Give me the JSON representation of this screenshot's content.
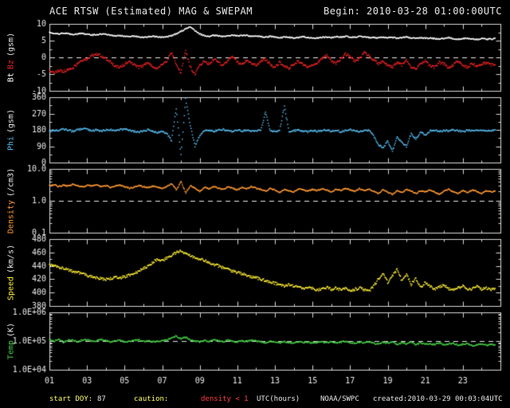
{
  "header": {
    "title": "ACE RTSW (Estimated) MAG & SWEPAM",
    "begin": "Begin: 2010-03-28 01:00:00UTC"
  },
  "footer": {
    "start_doy_label": "start DOY:",
    "start_doy_value": "87",
    "caution_label": "caution:",
    "caution_value": "density < 1",
    "xlabel": "UTC(hours)",
    "agency": "NOAA/SWPC",
    "created": "created:2010-03-29 00:03:04UTC"
  },
  "chart_data": {
    "type": "line",
    "title": "ACE RTSW (Estimated) MAG & SWEPAM",
    "xlabel": "UTC(hours)",
    "x_range": [
      1,
      25
    ],
    "x_ticks": [
      1,
      3,
      5,
      7,
      9,
      11,
      13,
      15,
      17,
      19,
      21,
      23
    ],
    "x_tick_labels": [
      "01",
      "03",
      "05",
      "07",
      "09",
      "11",
      "13",
      "15",
      "17",
      "19",
      "21",
      "23"
    ],
    "frame_color": "#d9d9d9",
    "tick_label_color": "#e8e8e8",
    "x": [
      1.0,
      1.25,
      1.5,
      1.75,
      2.0,
      2.25,
      2.5,
      2.75,
      3.0,
      3.25,
      3.5,
      3.75,
      4.0,
      4.25,
      4.5,
      4.75,
      5.0,
      5.25,
      5.5,
      5.75,
      6.0,
      6.25,
      6.5,
      6.75,
      7.0,
      7.25,
      7.5,
      7.75,
      8.0,
      8.25,
      8.5,
      8.75,
      9.0,
      9.25,
      9.5,
      9.75,
      10.0,
      10.25,
      10.5,
      10.75,
      11.0,
      11.25,
      11.5,
      11.75,
      12.0,
      12.25,
      12.5,
      12.75,
      13.0,
      13.25,
      13.5,
      13.75,
      14.0,
      14.25,
      14.5,
      14.75,
      15.0,
      15.25,
      15.5,
      15.75,
      16.0,
      16.25,
      16.5,
      16.75,
      17.0,
      17.25,
      17.5,
      17.75,
      18.0,
      18.25,
      18.5,
      18.75,
      19.0,
      19.25,
      19.5,
      19.75,
      20.0,
      20.25,
      20.5,
      20.75,
      21.0,
      21.25,
      21.5,
      21.75,
      22.0,
      22.25,
      22.5,
      22.75,
      23.0,
      23.25,
      23.5,
      23.75,
      24.0,
      24.25,
      24.5,
      24.75
    ],
    "panels": [
      {
        "id": "mag",
        "unit": "(gsm)",
        "scale": "linear",
        "ylim": [
          -10,
          10
        ],
        "yticks": [
          -10,
          -5,
          0,
          5,
          10
        ],
        "ytick_labels": [
          "-10",
          "-5",
          "0",
          "5",
          "10"
        ],
        "ref_lines": [
          0
        ],
        "series": [
          {
            "name": "Bt",
            "color": "#ffffff",
            "values": [
              7.5,
              7.2,
              7.0,
              7.3,
              7.1,
              6.8,
              7.0,
              7.2,
              6.9,
              6.7,
              6.8,
              7.0,
              6.9,
              6.6,
              6.4,
              6.5,
              6.3,
              6.2,
              6.4,
              6.1,
              6.0,
              6.2,
              6.3,
              6.1,
              6.0,
              6.2,
              6.5,
              7.0,
              7.8,
              8.5,
              9.2,
              8.0,
              7.0,
              6.5,
              6.3,
              6.6,
              6.4,
              6.2,
              6.5,
              6.7,
              6.4,
              6.6,
              6.5,
              6.3,
              6.4,
              6.2,
              6.0,
              6.3,
              6.1,
              5.9,
              6.1,
              6.0,
              5.8,
              6.0,
              6.2,
              5.9,
              5.7,
              5.8,
              6.0,
              6.1,
              5.9,
              6.2,
              6.0,
              6.3,
              6.1,
              6.0,
              6.2,
              6.1,
              5.9,
              6.0,
              5.8,
              6.1,
              5.9,
              6.0,
              5.7,
              5.9,
              6.1,
              5.8,
              5.6,
              5.9,
              5.7,
              5.8,
              5.6,
              5.5,
              5.7,
              5.9,
              5.6,
              5.4,
              5.6,
              5.8,
              5.5,
              5.3,
              5.6,
              5.4,
              5.5,
              5.6
            ]
          },
          {
            "name": "Bz",
            "color": "#ee2222",
            "values": [
              -4.0,
              -4.5,
              -3.8,
              -4.2,
              -3.5,
              -3.0,
              -2.0,
              -1.0,
              -0.5,
              0.5,
              1.0,
              0.5,
              -0.5,
              -1.5,
              -2.5,
              -3.0,
              -2.0,
              -1.0,
              -2.2,
              -3.0,
              -2.5,
              -1.5,
              -2.8,
              -3.5,
              -2.0,
              -1.0,
              1.5,
              -2.0,
              -4.5,
              2.0,
              -3.0,
              -5.0,
              -2.5,
              -1.0,
              -2.0,
              -0.5,
              -1.5,
              -2.5,
              -1.0,
              0.5,
              -1.5,
              -2.0,
              -0.8,
              -1.8,
              -2.5,
              -1.2,
              -0.5,
              -2.0,
              -3.0,
              -1.5,
              -2.5,
              -3.2,
              -2.0,
              -1.0,
              -2.2,
              -3.0,
              -2.5,
              -1.5,
              -0.5,
              0.8,
              -1.0,
              -2.0,
              -0.5,
              1.0,
              0.2,
              -1.2,
              -0.5,
              1.5,
              0.5,
              -0.8,
              -2.0,
              -1.0,
              -2.5,
              -3.0,
              -1.5,
              -2.2,
              -0.8,
              -2.8,
              -3.5,
              -2.0,
              -1.0,
              -2.5,
              -3.0,
              -1.5,
              -2.0,
              -3.2,
              -2.2,
              -1.0,
              -2.5,
              -3.0,
              -1.8,
              -2.8,
              -2.0,
              -1.5,
              -2.2,
              -2.0
            ]
          }
        ]
      },
      {
        "id": "phi",
        "unit": "(gsm)",
        "scale": "linear",
        "ylim": [
          0,
          360
        ],
        "yticks": [
          0,
          90,
          180,
          270,
          360
        ],
        "ytick_labels": [
          "0",
          "90",
          "180",
          "270",
          "360"
        ],
        "ref_lines": [],
        "series": [
          {
            "name": "Phi",
            "color": "#55bbee",
            "values": [
              170,
              180,
              175,
              185,
              178,
              172,
              180,
              188,
              182,
              176,
              180,
              174,
              178,
              182,
              176,
              180,
              185,
              178,
              172,
              168,
              175,
              180,
              172,
              165,
              170,
              160,
              120,
              300,
              40,
              350,
              200,
              90,
              150,
              175,
              180,
              172,
              178,
              182,
              176,
              170,
              180,
              174,
              178,
              172,
              176,
              180,
              280,
              175,
              170,
              178,
              310,
              172,
              176,
              180,
              174,
              170,
              178,
              172,
              176,
              180,
              174,
              178,
              170,
              175,
              182,
              178,
              172,
              176,
              180,
              150,
              100,
              80,
              120,
              60,
              140,
              110,
              90,
              160,
              130,
              170,
              150,
              175,
              180,
              172,
              178,
              174,
              182,
              176,
              170,
              178,
              174,
              180,
              176,
              172,
              178,
              180
            ]
          }
        ]
      },
      {
        "id": "density",
        "unit": "(/cm3)",
        "scale": "log",
        "ylim": [
          0.1,
          10
        ],
        "yticks": [
          0.1,
          1.0,
          10.0
        ],
        "ytick_labels": [
          "0.1",
          "1.0",
          "10.0"
        ],
        "ref_lines": [
          1.0
        ],
        "series": [
          {
            "name": "Density",
            "color": "#ff9933",
            "values": [
              3.0,
              3.2,
              2.8,
              3.1,
              2.9,
              3.3,
              3.0,
              2.7,
              3.1,
              2.9,
              3.2,
              2.8,
              3.0,
              2.6,
              2.9,
              3.1,
              2.8,
              2.5,
              2.7,
              3.0,
              2.8,
              2.6,
              2.9,
              2.7,
              2.5,
              2.8,
              3.5,
              2.2,
              4.0,
              1.8,
              3.0,
              2.5,
              2.0,
              2.6,
              2.4,
              2.8,
              2.5,
              2.3,
              2.7,
              2.5,
              2.2,
              2.6,
              2.4,
              2.8,
              2.5,
              2.3,
              2.0,
              2.5,
              2.2,
              1.8,
              2.3,
              2.1,
              1.9,
              2.4,
              2.2,
              2.0,
              2.3,
              2.1,
              2.4,
              2.2,
              1.9,
              2.3,
              2.1,
              2.5,
              2.2,
              2.0,
              2.4,
              2.1,
              2.3,
              2.0,
              1.7,
              2.2,
              1.9,
              1.6,
              2.1,
              1.8,
              2.3,
              2.0,
              1.7,
              2.1,
              1.9,
              2.2,
              1.9,
              1.6,
              2.0,
              2.3,
              1.9,
              1.7,
              2.1,
              1.8,
              2.2,
              2.0,
              1.7,
              2.1,
              1.9,
              2.0
            ]
          }
        ]
      },
      {
        "id": "speed",
        "unit": "(km/s)",
        "scale": "linear",
        "ylim": [
          380,
          480
        ],
        "yticks": [
          380,
          400,
          420,
          440,
          460,
          480
        ],
        "ytick_labels": [
          "380",
          "400",
          "420",
          "440",
          "460",
          "480"
        ],
        "ref_lines": [],
        "series": [
          {
            "name": "Speed",
            "color": "#ffee33",
            "values": [
              442,
              440,
              438,
              436,
              434,
              432,
              430,
              428,
              426,
              424,
              422,
              421,
              420,
              421,
              423,
              422,
              424,
              426,
              428,
              432,
              436,
              440,
              445,
              450,
              448,
              452,
              455,
              460,
              463,
              458,
              455,
              452,
              450,
              448,
              445,
              442,
              440,
              437,
              435,
              432,
              430,
              428,
              426,
              424,
              422,
              420,
              418,
              416,
              414,
              412,
              410,
              412,
              410,
              408,
              406,
              408,
              406,
              404,
              406,
              408,
              405,
              407,
              404,
              406,
              403,
              405,
              407,
              404,
              402,
              410,
              420,
              430,
              415,
              425,
              435,
              418,
              428,
              412,
              422,
              408,
              415,
              410,
              405,
              408,
              412,
              406,
              403,
              407,
              410,
              404,
              406,
              409,
              405,
              407,
              404,
              406
            ]
          }
        ]
      },
      {
        "id": "temp",
        "unit": "(K)",
        "scale": "log",
        "ylim": [
          10000,
          1000000
        ],
        "yticks": [
          10000,
          100000,
          1000000
        ],
        "ytick_labels": [
          "1.0E+04",
          "1.0E+05",
          "1.0E+06"
        ],
        "ref_lines": [
          100000
        ],
        "series": [
          {
            "name": "Temp",
            "color": "#44cc44",
            "values": [
              110000,
              100000,
              120000,
              90000,
              110000,
              105000,
              95000,
              108000,
              112000,
              98000,
              102000,
              115000,
              105000,
              95000,
              100000,
              108000,
              92000,
              98000,
              105000,
              110000,
              96000,
              100000,
              94000,
              98000,
              102000,
              110000,
              130000,
              150000,
              120000,
              140000,
              110000,
              100000,
              95000,
              105000,
              98000,
              110000,
              102000,
              95000,
              108000,
              100000,
              92000,
              104000,
              98000,
              106000,
              100000,
              95000,
              88000,
              98000,
              92000,
              85000,
              96000,
              90000,
              84000,
              94000,
              88000,
              92000,
              86000,
              90000,
              96000,
              88000,
              94000,
              86000,
              92000,
              98000,
              90000,
              85000,
              93000,
              88000,
              95000,
              85000,
              78000,
              90000,
              82000,
              95000,
              75000,
              88000,
              80000,
              92000,
              76000,
              84000,
              79000,
              82000,
              75000,
              88000,
              72000,
              80000,
              85000,
              70000,
              78000,
              83000,
              68000,
              74000,
              80000,
              72000,
              76000,
              73000
            ]
          }
        ]
      }
    ]
  }
}
